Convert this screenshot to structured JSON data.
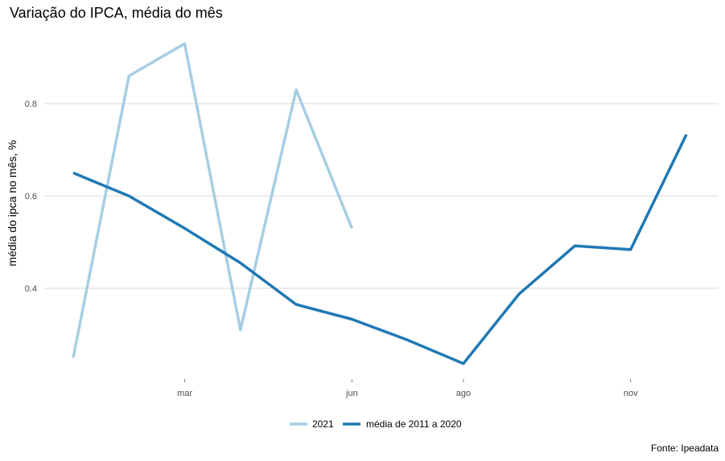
{
  "chart_data": {
    "type": "line",
    "title": "Variação do IPCA, média do mês",
    "ylabel": "média do ipca no mês, %",
    "xlabel": "",
    "x_months": [
      1,
      2,
      3,
      4,
      5,
      6,
      7,
      8,
      9,
      10,
      11,
      12
    ],
    "x_ticks": [
      {
        "month": 3,
        "label": "mar"
      },
      {
        "month": 6,
        "label": "jun"
      },
      {
        "month": 8,
        "label": "ago"
      },
      {
        "month": 11,
        "label": "nov"
      }
    ],
    "y_ticks": [
      0.4,
      0.6,
      0.8
    ],
    "xlim": [
      1,
      12
    ],
    "ylim": [
      0.22,
      0.95
    ],
    "series": [
      {
        "name": "2021",
        "color": "#a6cee3",
        "values": [
          0.25,
          0.86,
          0.93,
          0.31,
          0.83,
          0.53
        ]
      },
      {
        "name": "média de 2011 a 2020",
        "color": "#1f78b4",
        "values": [
          0.65,
          0.6,
          0.53,
          0.455,
          0.365,
          0.333,
          0.288,
          0.237,
          0.388,
          0.492,
          0.484,
          0.733
        ]
      }
    ],
    "grid": "horizontal",
    "legend_position": "bottom"
  },
  "caption": "Fonte: Ipeadata"
}
